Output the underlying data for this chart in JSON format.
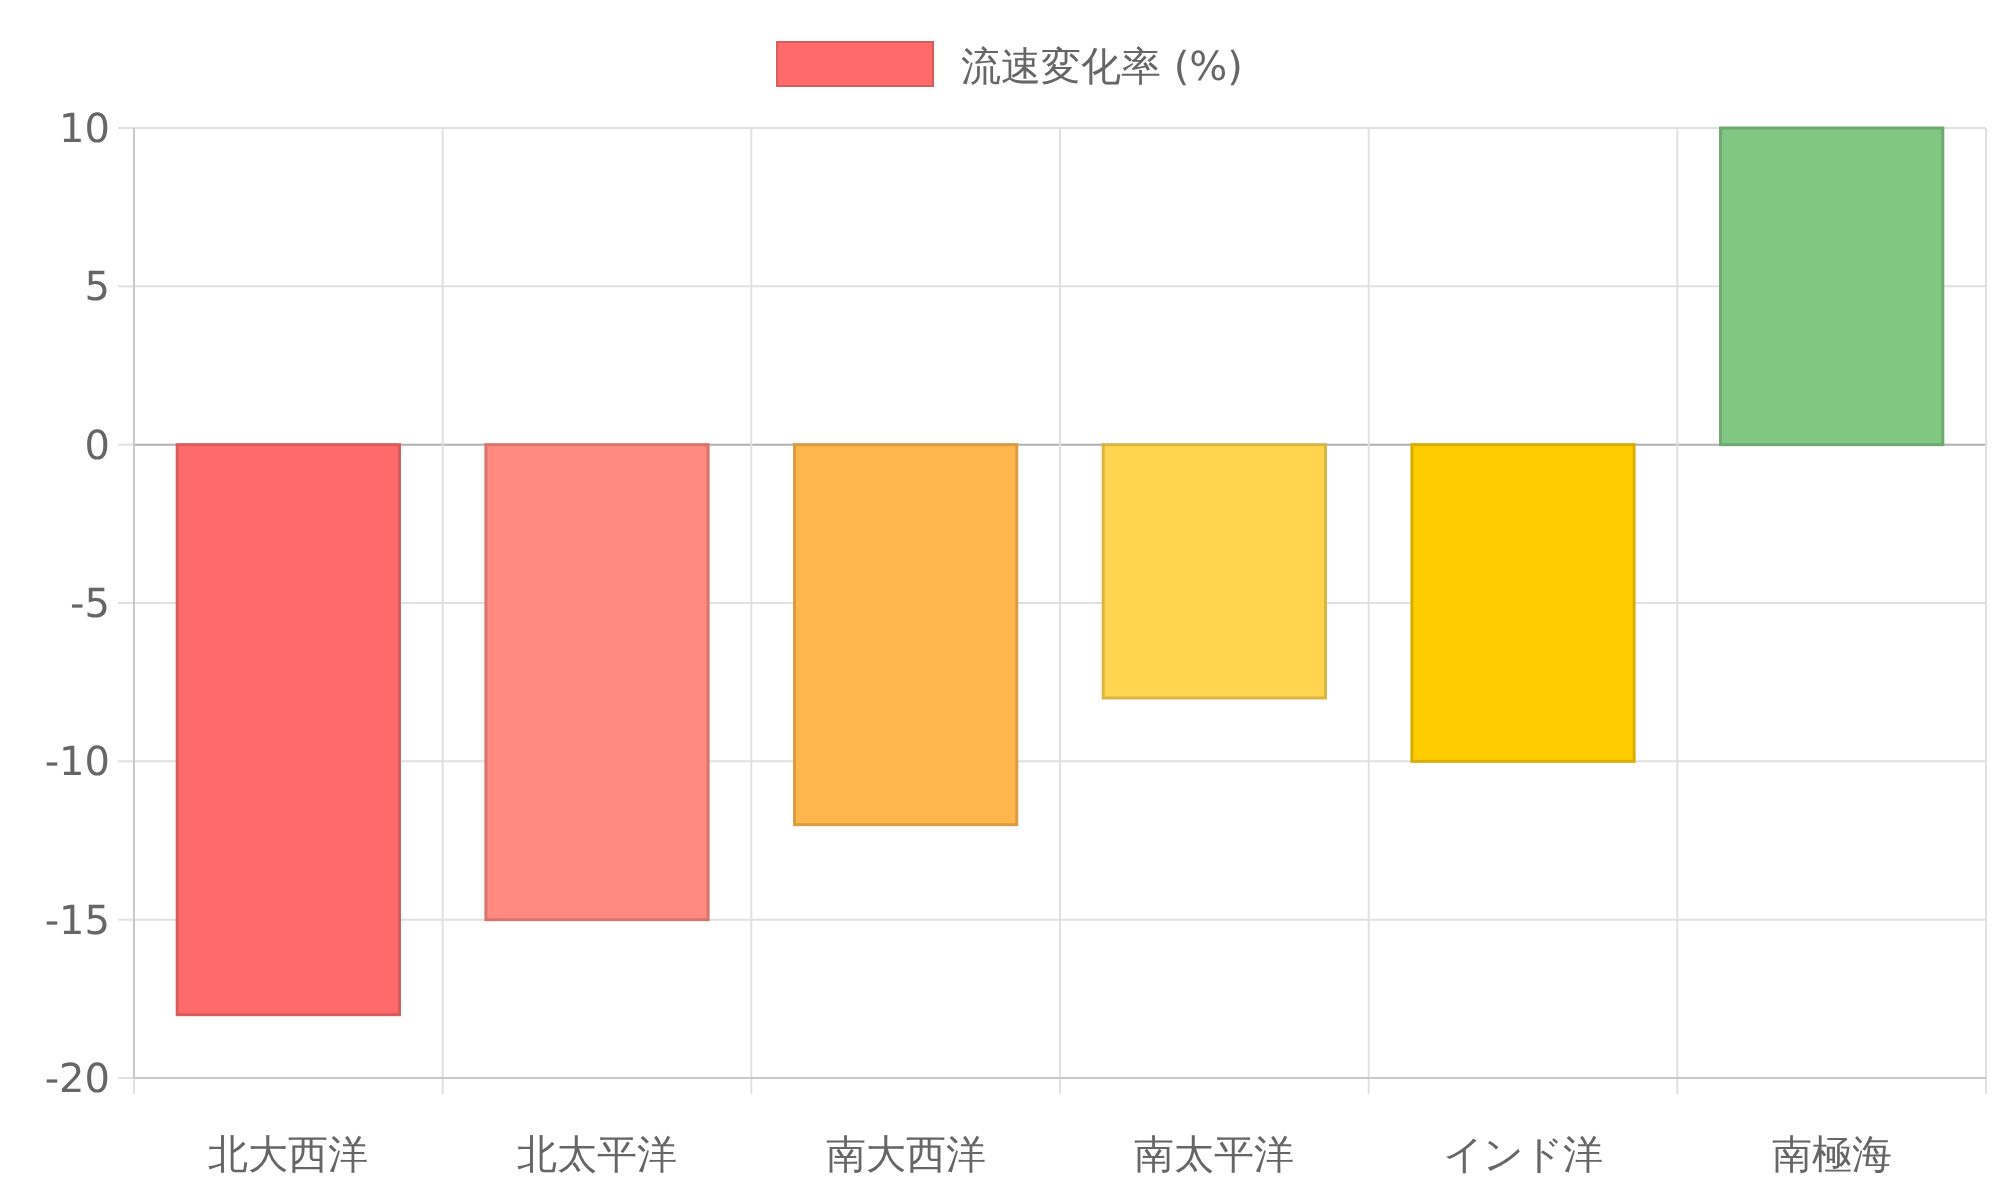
{
  "chart_data": {
    "type": "bar",
    "categories": [
      "北大西洋",
      "北太平洋",
      "南大西洋",
      "南太平洋",
      "インド洋",
      "南極海"
    ],
    "series": [
      {
        "name": "流速変化率 (%)",
        "colors": [
          "#ff6b6b",
          "#ff8a80",
          "#ffb74d",
          "#ffd54f",
          "#ffcc00",
          "#81c784"
        ],
        "values": [
          -18,
          -15,
          -12,
          -8,
          -10,
          10
        ]
      }
    ],
    "ylim": [
      -20,
      10
    ],
    "yticks": [
      -20,
      -15,
      -10,
      -5,
      0,
      5,
      10
    ],
    "grid": true,
    "legend": "top"
  }
}
